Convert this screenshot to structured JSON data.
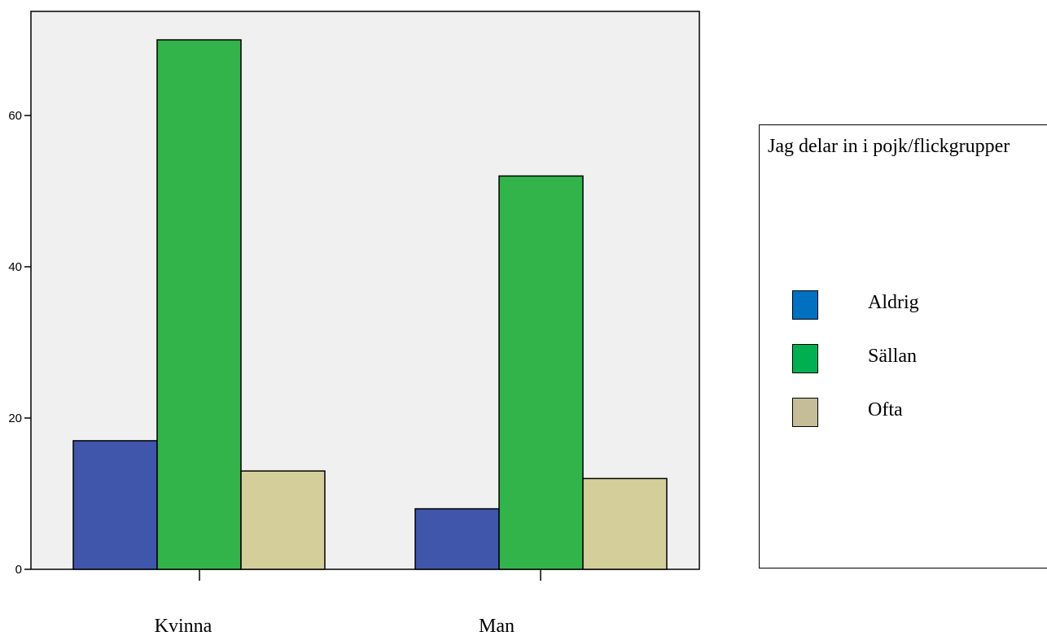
{
  "chart_data": {
    "type": "bar",
    "categories": [
      "Kvinna",
      "Man"
    ],
    "series": [
      {
        "name": "Aldrig",
        "values": [
          17,
          8
        ],
        "color": "#3f56ab",
        "legend_color": "#0070c0"
      },
      {
        "name": "Sällan",
        "values": [
          70,
          52
        ],
        "color": "#32b44a",
        "legend_color": "#00b050"
      },
      {
        "name": "Ofta",
        "values": [
          13,
          12
        ],
        "color": "#d4cf9a",
        "legend_color": "#c4bd97"
      }
    ],
    "yticks": [
      0,
      20,
      40,
      60
    ],
    "ylim": [
      0,
      74
    ],
    "plot_background": "#f0f0f0",
    "legend": {
      "title": "Jag delar in i pojk/flickgrupper",
      "placement": "right"
    }
  }
}
